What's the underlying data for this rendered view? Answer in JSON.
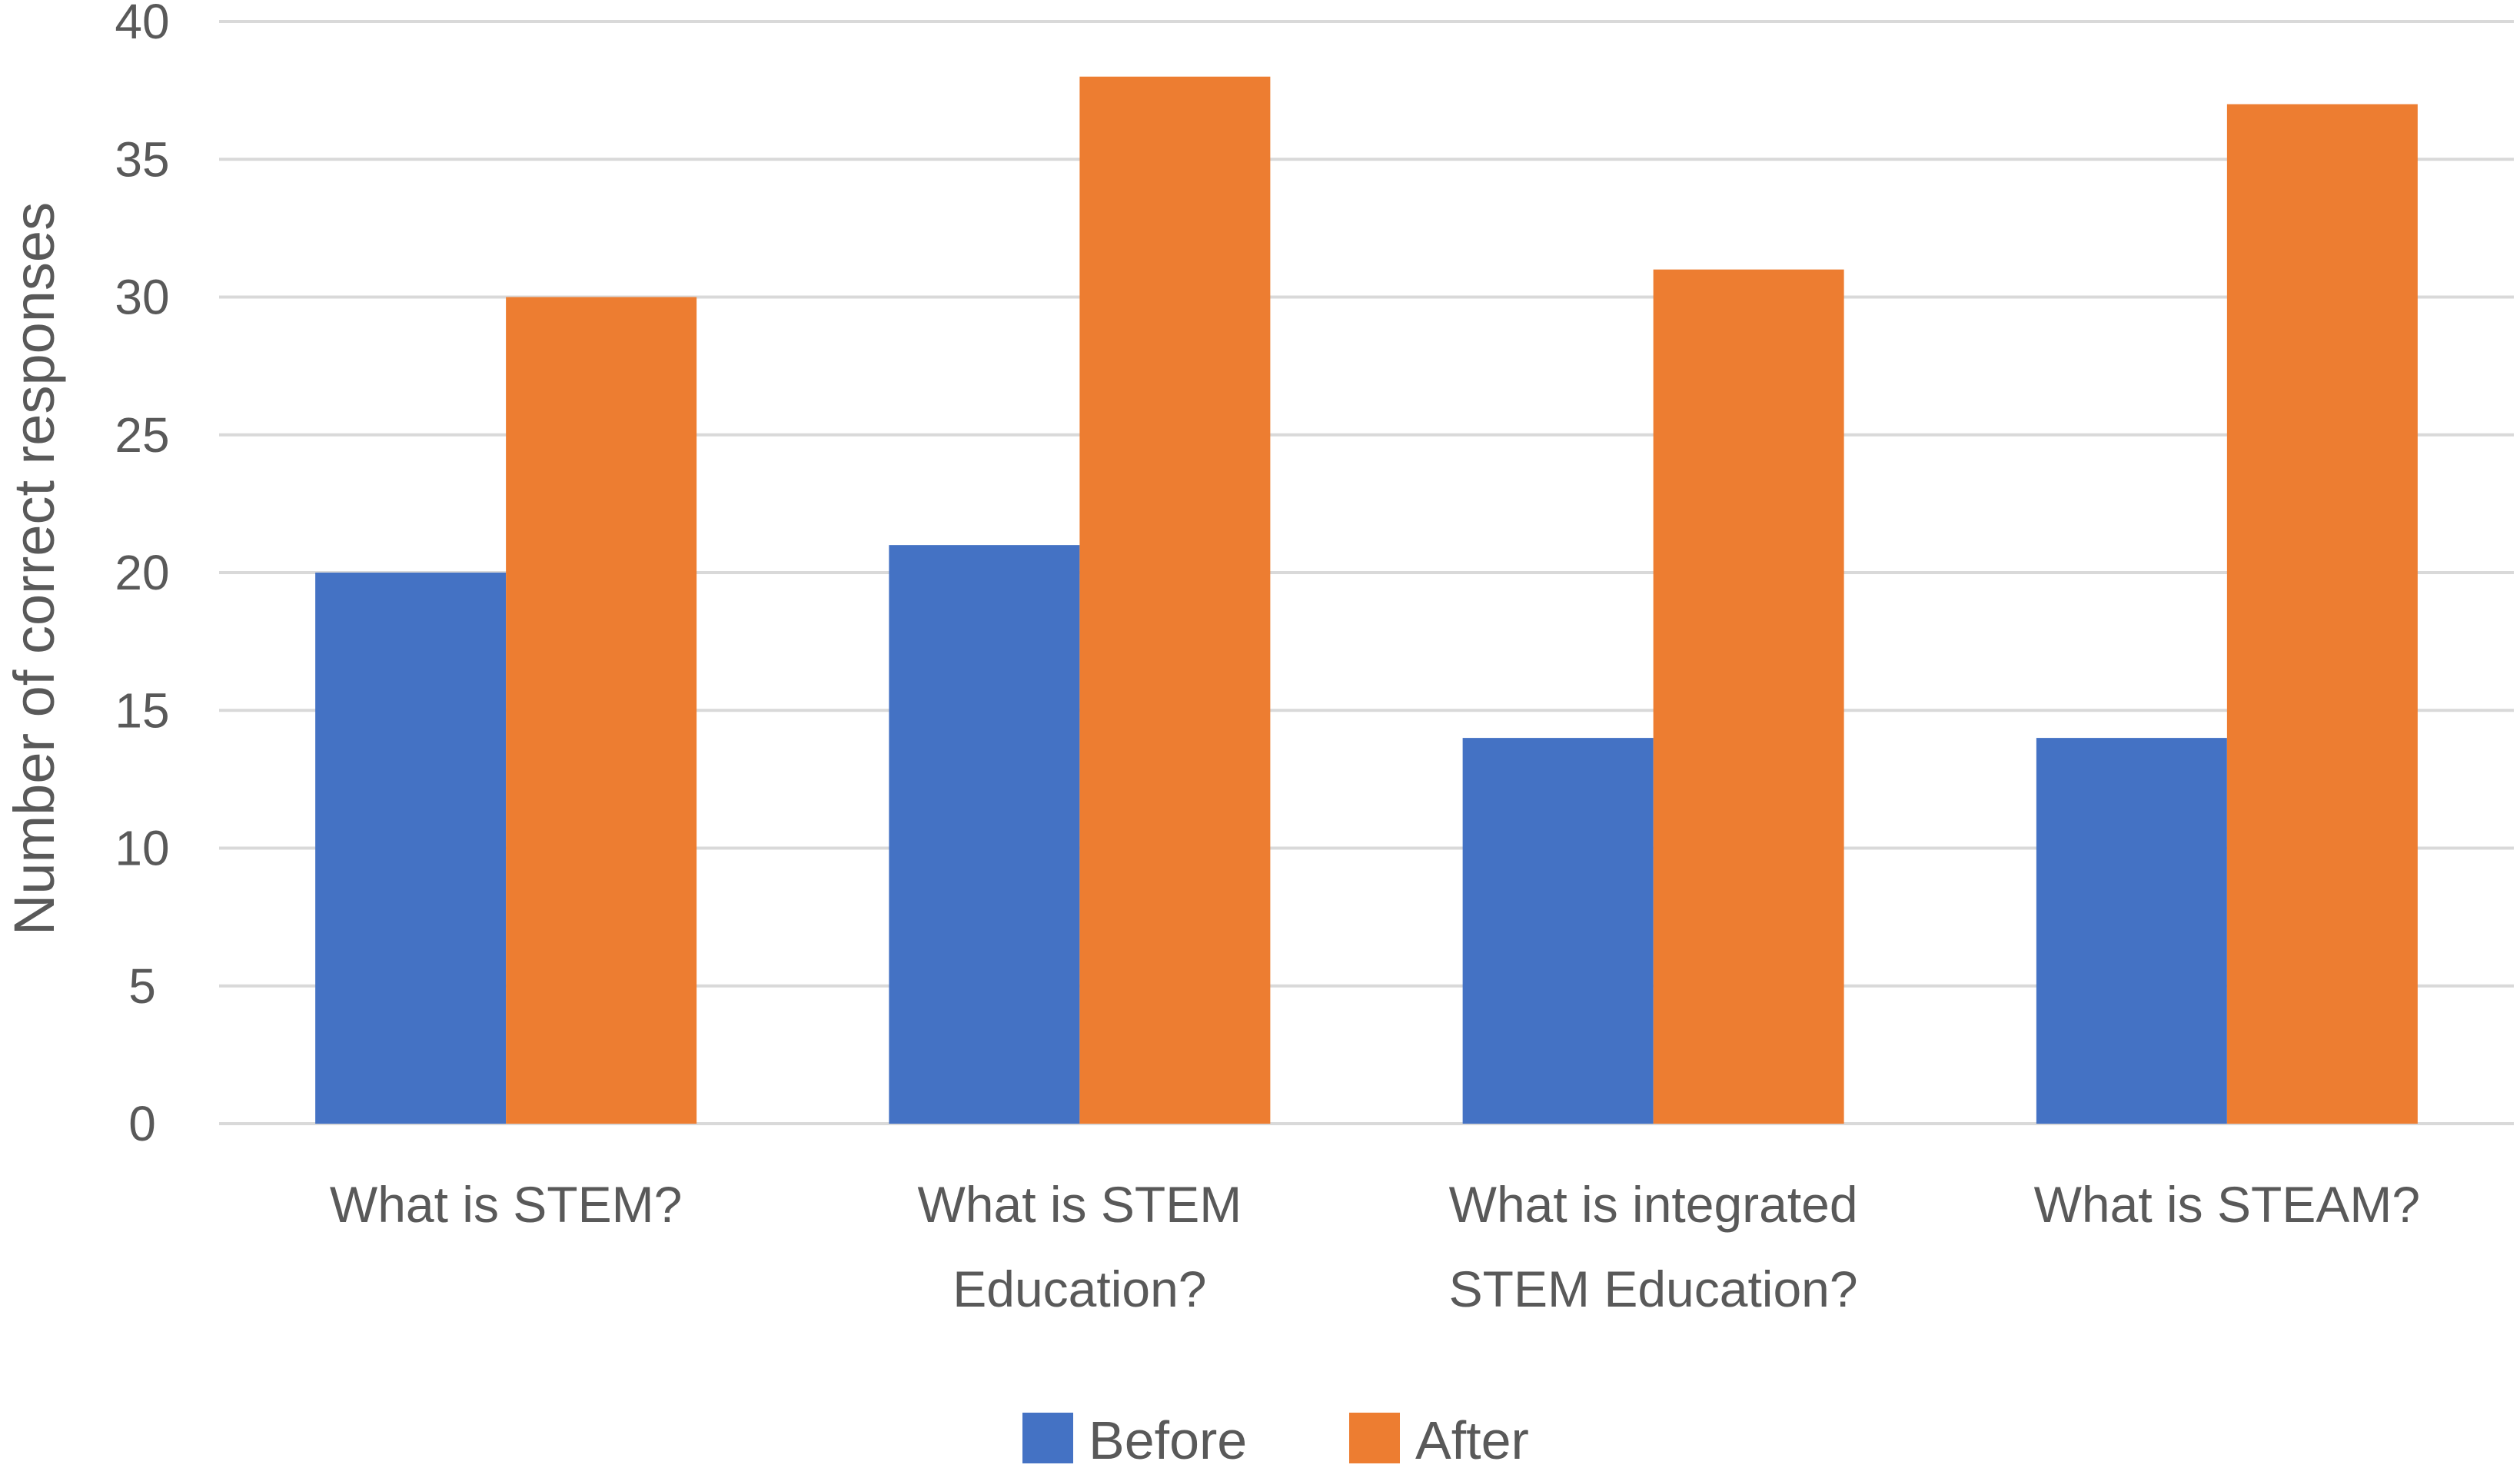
{
  "chart_data": {
    "type": "bar",
    "title": "",
    "xlabel": "",
    "ylabel": "Number of correct responses",
    "ylim": [
      0,
      40
    ],
    "yticks": [
      0,
      5,
      10,
      15,
      20,
      25,
      30,
      35,
      40
    ],
    "grid": true,
    "legend_position": "bottom-center",
    "categories": [
      [
        "What is STEM?"
      ],
      [
        "What is STEM",
        "Education?"
      ],
      [
        "What is integrated",
        "STEM Education?"
      ],
      [
        "What is STEAM?"
      ]
    ],
    "series": [
      {
        "name": "Before",
        "color": "#4472C4",
        "values": [
          20,
          21,
          14,
          14
        ]
      },
      {
        "name": "After",
        "color": "#ED7D31",
        "values": [
          30,
          38,
          31,
          37
        ]
      }
    ]
  }
}
